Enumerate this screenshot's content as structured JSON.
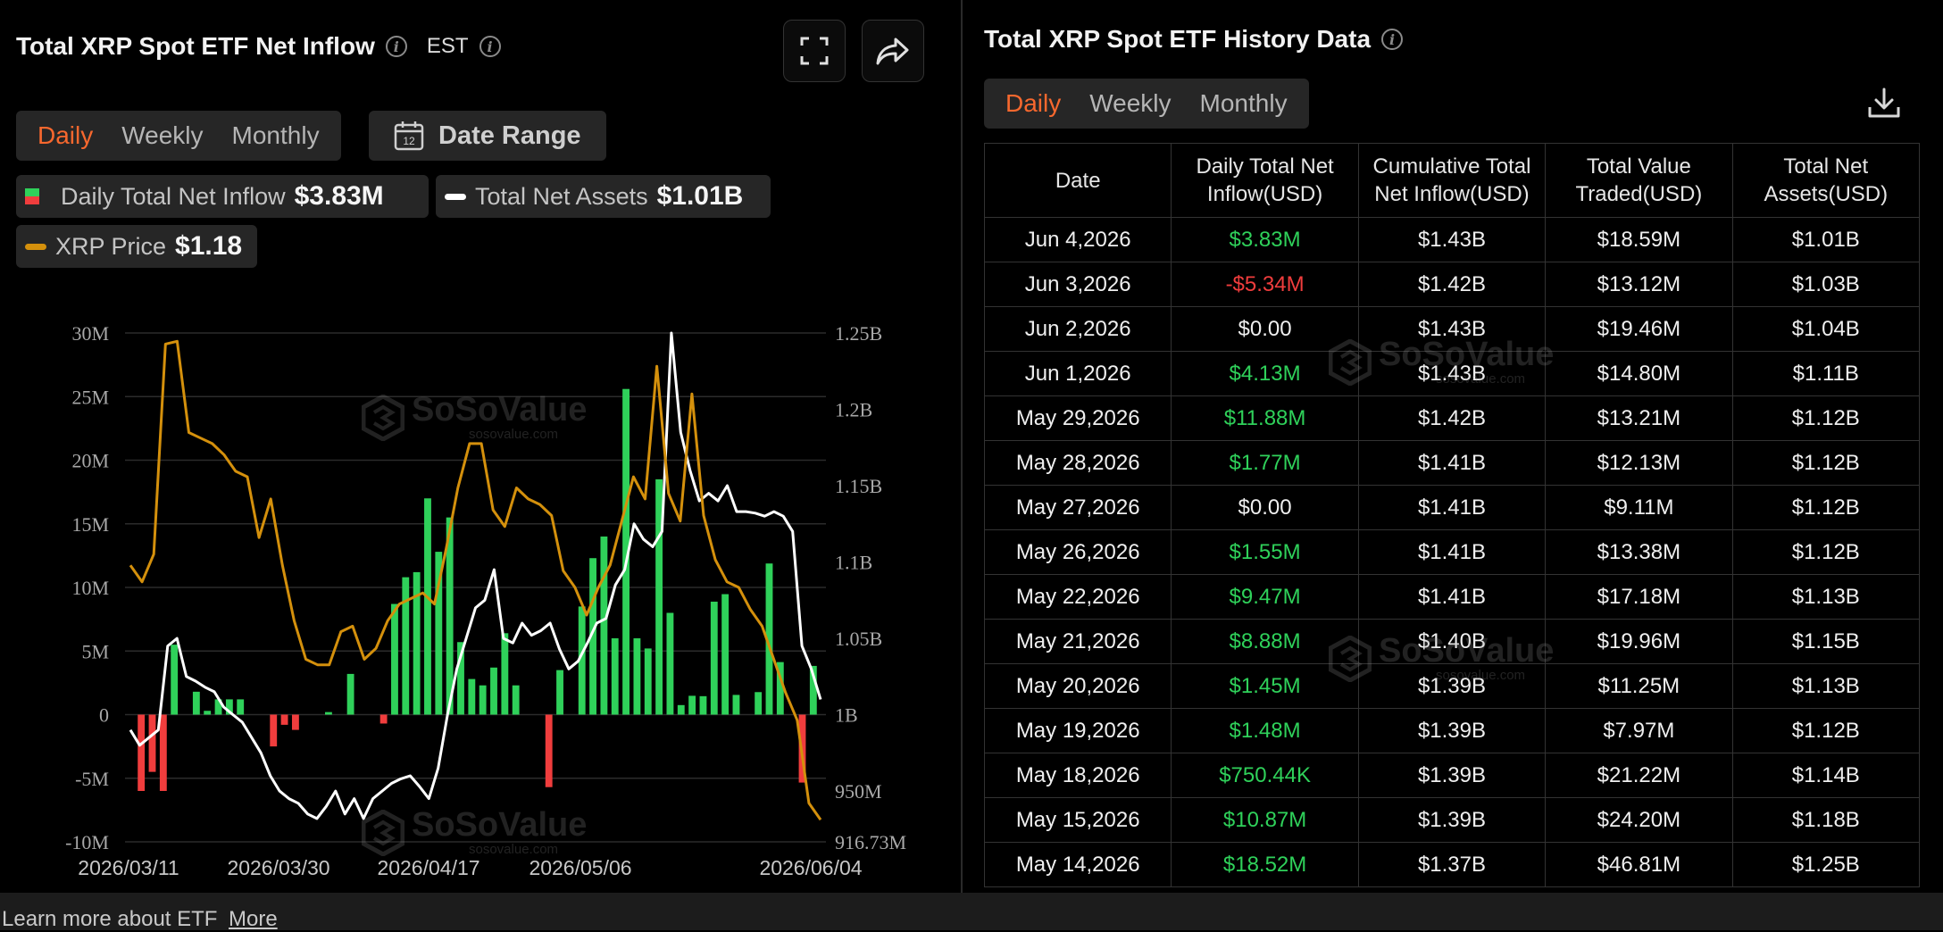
{
  "left": {
    "title": "Total XRP Spot ETF Net Inflow",
    "timezone": "EST",
    "tabs": [
      {
        "label": "Daily",
        "active": true
      },
      {
        "label": "Weekly",
        "active": false
      },
      {
        "label": "Monthly",
        "active": false
      }
    ],
    "date_range_label": "Date Range",
    "calendar_day": "12",
    "legend": {
      "inflow_label": "Daily Total Net Inflow",
      "inflow_value": "$3.83M",
      "assets_label": "Total Net Assets",
      "assets_value": "$1.01B",
      "price_label": "XRP Price",
      "price_value": "$1.18"
    }
  },
  "watermark": {
    "name": "SoSoValue",
    "url": "sosovalue.com"
  },
  "colors": {
    "accent": "#f7682e",
    "positive": "#2fd15a",
    "negative": "#f03d3d",
    "assets_line": "#ffffff",
    "price_line": "#d4900c"
  },
  "chart_data": {
    "type": "bar",
    "x_tick_labels": [
      "2026/03/11",
      "2026/03/30",
      "2026/04/17",
      "2026/05/06",
      "2026/06/04"
    ],
    "y_left_ticks": [
      "30M",
      "25M",
      "20M",
      "15M",
      "10M",
      "5M",
      "0",
      "-5M",
      "-10M"
    ],
    "y_right_ticks": [
      "1.25B",
      "1.2B",
      "1.15B",
      "1.1B",
      "1.05B",
      "1B",
      "950M",
      "916.73M"
    ],
    "ylim_left": [
      -10000000,
      30000000
    ],
    "ylim_right": [
      916730000,
      1250000000
    ],
    "grid": true,
    "n_days": 62,
    "series": [
      {
        "name": "Daily Total Net Inflow",
        "axis": "left",
        "style": "bar",
        "values": [
          -6.0,
          -4.5,
          -6.0,
          5.5,
          0,
          1.8,
          0.3,
          1.2,
          1.2,
          1.2,
          0,
          0,
          -2.5,
          -0.8,
          -1.2,
          0,
          0,
          0.2,
          0,
          3.2,
          0,
          0,
          -0.7,
          8.7,
          10.8,
          11.2,
          17.0,
          12.8,
          15.5,
          5.7,
          2.8,
          2.3,
          3.7,
          6.4,
          2.3,
          0,
          0,
          -5.7,
          3.5,
          0,
          8.5,
          12.3,
          14.0,
          6.0,
          25.6,
          6.0,
          5.2,
          18.5,
          8.0,
          0.75,
          1.48,
          1.45,
          8.88,
          9.47,
          1.55,
          0,
          1.77,
          11.88,
          4.13,
          0,
          -5.34,
          3.83
        ]
      },
      {
        "name": "Total Net Assets",
        "axis": "right",
        "style": "line",
        "values": [
          990,
          980,
          985,
          990,
          1045,
          1050,
          1025,
          1022,
          1018,
          1015,
          1005,
          1000,
          995,
          985,
          975,
          960,
          950,
          945,
          942,
          935,
          932,
          940,
          950,
          935,
          945,
          932,
          945,
          950,
          955,
          958,
          960,
          953,
          945,
          965,
          1000,
          1030,
          1050,
          1070,
          1075,
          1095,
          1050,
          1047,
          1060,
          1052,
          1055,
          1060,
          1043,
          1030,
          1035,
          1047,
          1060,
          1063,
          1085,
          1095,
          1125,
          1115,
          1110,
          1120,
          1250,
          1185,
          1160,
          1140,
          1145,
          1140,
          1150,
          1133,
          1133,
          1132,
          1130,
          1133,
          1130,
          1120,
          1045,
          1030,
          1010
        ]
      },
      {
        "name": "XRP Price",
        "axis": "right",
        "style": "line",
        "values": [
          1.5,
          1.6,
          1.9,
          2.2,
          1.8,
          1.75,
          1.7,
          1.65,
          1.55,
          1.35,
          1.3
        ]
      }
    ]
  },
  "right": {
    "title": "Total XRP Spot ETF History Data",
    "tabs": [
      {
        "label": "Daily",
        "active": true
      },
      {
        "label": "Weekly",
        "active": false
      },
      {
        "label": "Monthly",
        "active": false
      }
    ],
    "columns": [
      "Date",
      "Daily Total Net Inflow(USD)",
      "Cumulative Total Net Inflow(USD)",
      "Total Value Traded(USD)",
      "Total Net Assets(USD)"
    ],
    "rows": [
      {
        "date": "Jun 4,2026",
        "inflow": "$3.83M",
        "sign": "pos",
        "cumulative": "$1.43B",
        "traded": "$18.59M",
        "assets": "$1.01B"
      },
      {
        "date": "Jun 3,2026",
        "inflow": "-$5.34M",
        "sign": "neg",
        "cumulative": "$1.42B",
        "traded": "$13.12M",
        "assets": "$1.03B"
      },
      {
        "date": "Jun 2,2026",
        "inflow": "$0.00",
        "sign": "zero",
        "cumulative": "$1.43B",
        "traded": "$19.46M",
        "assets": "$1.04B"
      },
      {
        "date": "Jun 1,2026",
        "inflow": "$4.13M",
        "sign": "pos",
        "cumulative": "$1.43B",
        "traded": "$14.80M",
        "assets": "$1.11B"
      },
      {
        "date": "May 29,2026",
        "inflow": "$11.88M",
        "sign": "pos",
        "cumulative": "$1.42B",
        "traded": "$13.21M",
        "assets": "$1.12B"
      },
      {
        "date": "May 28,2026",
        "inflow": "$1.77M",
        "sign": "pos",
        "cumulative": "$1.41B",
        "traded": "$12.13M",
        "assets": "$1.12B"
      },
      {
        "date": "May 27,2026",
        "inflow": "$0.00",
        "sign": "zero",
        "cumulative": "$1.41B",
        "traded": "$9.11M",
        "assets": "$1.12B"
      },
      {
        "date": "May 26,2026",
        "inflow": "$1.55M",
        "sign": "pos",
        "cumulative": "$1.41B",
        "traded": "$13.38M",
        "assets": "$1.12B"
      },
      {
        "date": "May 22,2026",
        "inflow": "$9.47M",
        "sign": "pos",
        "cumulative": "$1.41B",
        "traded": "$17.18M",
        "assets": "$1.13B"
      },
      {
        "date": "May 21,2026",
        "inflow": "$8.88M",
        "sign": "pos",
        "cumulative": "$1.40B",
        "traded": "$19.96M",
        "assets": "$1.15B"
      },
      {
        "date": "May 20,2026",
        "inflow": "$1.45M",
        "sign": "pos",
        "cumulative": "$1.39B",
        "traded": "$11.25M",
        "assets": "$1.13B"
      },
      {
        "date": "May 19,2026",
        "inflow": "$1.48M",
        "sign": "pos",
        "cumulative": "$1.39B",
        "traded": "$7.97M",
        "assets": "$1.12B"
      },
      {
        "date": "May 18,2026",
        "inflow": "$750.44K",
        "sign": "pos",
        "cumulative": "$1.39B",
        "traded": "$21.22M",
        "assets": "$1.14B"
      },
      {
        "date": "May 15,2026",
        "inflow": "$10.87M",
        "sign": "pos",
        "cumulative": "$1.39B",
        "traded": "$24.20M",
        "assets": "$1.18B"
      },
      {
        "date": "May 14,2026",
        "inflow": "$18.52M",
        "sign": "pos",
        "cumulative": "$1.37B",
        "traded": "$46.81M",
        "assets": "$1.25B"
      }
    ]
  },
  "footer": {
    "learn_more": "Learn more about ETF",
    "more_link": "More"
  }
}
